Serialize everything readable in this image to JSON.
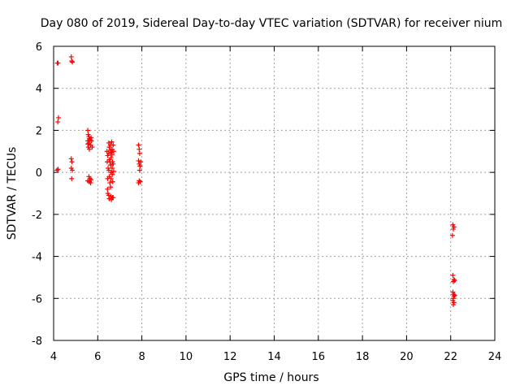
{
  "chart_data": {
    "type": "scatter",
    "title": "Day 080 of 2019, Sidereal Day-to-day VTEC variation (SDTVAR) for receiver nium",
    "xlabel": "GPS time / hours",
    "ylabel": "SDTVAR / TECUs",
    "xlim": [
      4,
      24
    ],
    "ylim": [
      -8,
      6
    ],
    "xticks": [
      4,
      6,
      8,
      10,
      12,
      14,
      16,
      18,
      20,
      22,
      24
    ],
    "yticks": [
      -8,
      -6,
      -4,
      -2,
      0,
      2,
      4,
      6
    ],
    "xtick_labels": [
      "4",
      "6",
      "8",
      "10",
      "12",
      "14",
      "16",
      "18",
      "20",
      "22",
      "24"
    ],
    "ytick_labels": [
      "-8",
      "-6",
      "-4",
      "-2",
      "0",
      "2",
      "4",
      "6"
    ],
    "grid": true,
    "marker": "+",
    "series": [
      {
        "name": "SDTVAR",
        "color": "#ff0000",
        "points": [
          [
            4.17,
            5.2
          ],
          [
            4.2,
            5.2
          ],
          [
            4.19,
            2.4
          ],
          [
            4.22,
            2.6
          ],
          [
            4.15,
            0.1
          ],
          [
            4.2,
            0.15
          ],
          [
            4.8,
            5.5
          ],
          [
            4.82,
            5.3
          ],
          [
            4.85,
            5.25
          ],
          [
            4.8,
            0.65
          ],
          [
            4.8,
            0.2
          ],
          [
            4.83,
            0.5
          ],
          [
            4.85,
            0.1
          ],
          [
            4.82,
            -0.3
          ],
          [
            5.55,
            2.0
          ],
          [
            5.57,
            1.8
          ],
          [
            5.6,
            1.7
          ],
          [
            5.62,
            1.6
          ],
          [
            5.55,
            1.5
          ],
          [
            5.6,
            1.4
          ],
          [
            5.65,
            1.55
          ],
          [
            5.68,
            1.3
          ],
          [
            5.58,
            1.2
          ],
          [
            5.62,
            1.1
          ],
          [
            5.55,
            1.35
          ],
          [
            5.7,
            1.65
          ],
          [
            5.72,
            1.5
          ],
          [
            5.75,
            1.2
          ],
          [
            5.6,
            -0.2
          ],
          [
            5.65,
            -0.3
          ],
          [
            5.55,
            -0.4
          ],
          [
            5.62,
            -0.45
          ],
          [
            5.68,
            -0.5
          ],
          [
            5.7,
            -0.35
          ],
          [
            6.42,
            1.0
          ],
          [
            6.45,
            0.8
          ],
          [
            6.43,
            0.5
          ],
          [
            6.47,
            0.2
          ],
          [
            6.45,
            -0.3
          ],
          [
            6.44,
            -0.8
          ],
          [
            6.46,
            -1.0
          ],
          [
            6.5,
            1.4
          ],
          [
            6.52,
            1.2
          ],
          [
            6.5,
            0.9
          ],
          [
            6.53,
            0.6
          ],
          [
            6.5,
            0.1
          ],
          [
            6.52,
            -0.2
          ],
          [
            6.55,
            -0.5
          ],
          [
            6.5,
            -1.1
          ],
          [
            6.52,
            -1.25
          ],
          [
            6.57,
            1.3
          ],
          [
            6.58,
            1.05
          ],
          [
            6.6,
            0.7
          ],
          [
            6.58,
            0.35
          ],
          [
            6.6,
            0.0
          ],
          [
            6.6,
            -0.3
          ],
          [
            6.58,
            -0.7
          ],
          [
            6.6,
            -1.15
          ],
          [
            6.62,
            -1.3
          ],
          [
            6.63,
            1.45
          ],
          [
            6.65,
            1.1
          ],
          [
            6.65,
            0.85
          ],
          [
            6.67,
            0.5
          ],
          [
            6.65,
            0.2
          ],
          [
            6.66,
            -0.1
          ],
          [
            6.67,
            -1.2
          ],
          [
            6.7,
            1.3
          ],
          [
            6.72,
            1.0
          ],
          [
            6.7,
            0.4
          ],
          [
            6.72,
            0.05
          ],
          [
            6.7,
            -1.2
          ],
          [
            6.55,
            0.5
          ],
          [
            6.62,
            0.95
          ],
          [
            6.68,
            -0.45
          ],
          [
            7.85,
            1.3
          ],
          [
            7.88,
            1.1
          ],
          [
            7.9,
            0.9
          ],
          [
            7.85,
            0.55
          ],
          [
            7.88,
            0.4
          ],
          [
            7.92,
            0.3
          ],
          [
            7.9,
            0.1
          ],
          [
            7.88,
            -0.4
          ],
          [
            7.85,
            -0.5
          ],
          [
            7.93,
            -0.45
          ],
          [
            7.95,
            0.5
          ],
          [
            22.1,
            -2.5
          ],
          [
            22.12,
            -2.7
          ],
          [
            22.15,
            -2.6
          ],
          [
            22.08,
            -3.0
          ],
          [
            22.1,
            -4.9
          ],
          [
            22.15,
            -5.1
          ],
          [
            22.12,
            -5.2
          ],
          [
            22.18,
            -5.15
          ],
          [
            22.1,
            -5.7
          ],
          [
            22.13,
            -5.8
          ],
          [
            22.15,
            -5.9
          ],
          [
            22.12,
            -6.0
          ],
          [
            22.1,
            -6.1
          ],
          [
            22.15,
            -6.2
          ],
          [
            22.12,
            -6.3
          ],
          [
            22.18,
            -5.85
          ]
        ]
      }
    ]
  }
}
